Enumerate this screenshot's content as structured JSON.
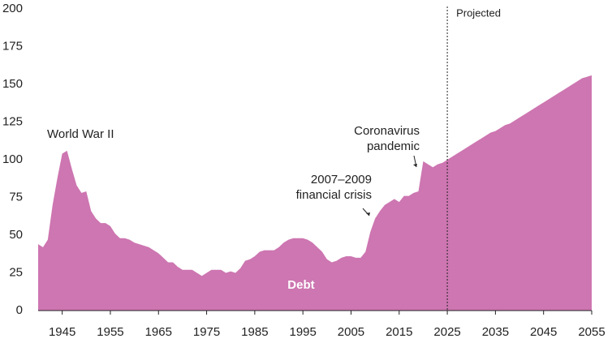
{
  "chart_data": {
    "type": "area",
    "x": [
      1940,
      1941,
      1942,
      1943,
      1944,
      1945,
      1946,
      1947,
      1948,
      1949,
      1950,
      1951,
      1952,
      1953,
      1954,
      1955,
      1956,
      1957,
      1958,
      1959,
      1960,
      1961,
      1962,
      1963,
      1964,
      1965,
      1966,
      1967,
      1968,
      1969,
      1970,
      1971,
      1972,
      1973,
      1974,
      1975,
      1976,
      1977,
      1978,
      1979,
      1980,
      1981,
      1982,
      1983,
      1984,
      1985,
      1986,
      1987,
      1988,
      1989,
      1990,
      1991,
      1992,
      1993,
      1994,
      1995,
      1996,
      1997,
      1998,
      1999,
      2000,
      2001,
      2002,
      2003,
      2004,
      2005,
      2006,
      2007,
      2008,
      2009,
      2010,
      2011,
      2012,
      2013,
      2014,
      2015,
      2016,
      2017,
      2018,
      2019,
      2020,
      2021,
      2022,
      2023,
      2024,
      2025,
      2026,
      2027,
      2028,
      2029,
      2030,
      2031,
      2032,
      2033,
      2034,
      2035,
      2036,
      2037,
      2038,
      2039,
      2040,
      2041,
      2042,
      2043,
      2044,
      2045,
      2046,
      2047,
      2048,
      2049,
      2050,
      2051,
      2052,
      2053,
      2054,
      2055
    ],
    "series": [
      {
        "name": "Debt",
        "color": "#cd76b1",
        "values": [
          44,
          42,
          47,
          70,
          88,
          104,
          106,
          94,
          83,
          78,
          79,
          66,
          61,
          58,
          58,
          56,
          51,
          48,
          48,
          47,
          45,
          44,
          43,
          42,
          40,
          38,
          35,
          32,
          32,
          29,
          27,
          27,
          27,
          25,
          23,
          25,
          27,
          27,
          27,
          25,
          26,
          25,
          28,
          33,
          34,
          36,
          39,
          40,
          40,
          40,
          42,
          45,
          47,
          48,
          48,
          48,
          47,
          45,
          42,
          39,
          34,
          32,
          33,
          35,
          36,
          36,
          35,
          35,
          39,
          52,
          61,
          66,
          70,
          72,
          74,
          72,
          76,
          76,
          78,
          79,
          99,
          97,
          95,
          97,
          98,
          100,
          102,
          104,
          106,
          108,
          110,
          112,
          114,
          116,
          118,
          119,
          121,
          123,
          124,
          126,
          128,
          130,
          132,
          134,
          136,
          138,
          140,
          142,
          144,
          146,
          148,
          150,
          152,
          154,
          155,
          156
        ]
      }
    ],
    "xlim": [
      1940,
      2055
    ],
    "xticks": [
      1945,
      1955,
      1965,
      1975,
      1985,
      1995,
      2005,
      2015,
      2025,
      2035,
      2045,
      2055
    ],
    "ylim": [
      0,
      200
    ],
    "yticks": [
      0,
      25,
      50,
      75,
      100,
      125,
      150,
      175,
      200
    ],
    "projection_start": 2025,
    "projection_label": "Projected",
    "annotations": [
      {
        "lines": [
          "World War II"
        ],
        "x": 1946,
        "y": 106
      },
      {
        "lines": [
          "2007–2009",
          "financial crisis"
        ],
        "x": 2009,
        "y": 58
      },
      {
        "lines": [
          "Coronavirus",
          "pandemic"
        ],
        "x": 2019,
        "y": 95
      }
    ]
  }
}
